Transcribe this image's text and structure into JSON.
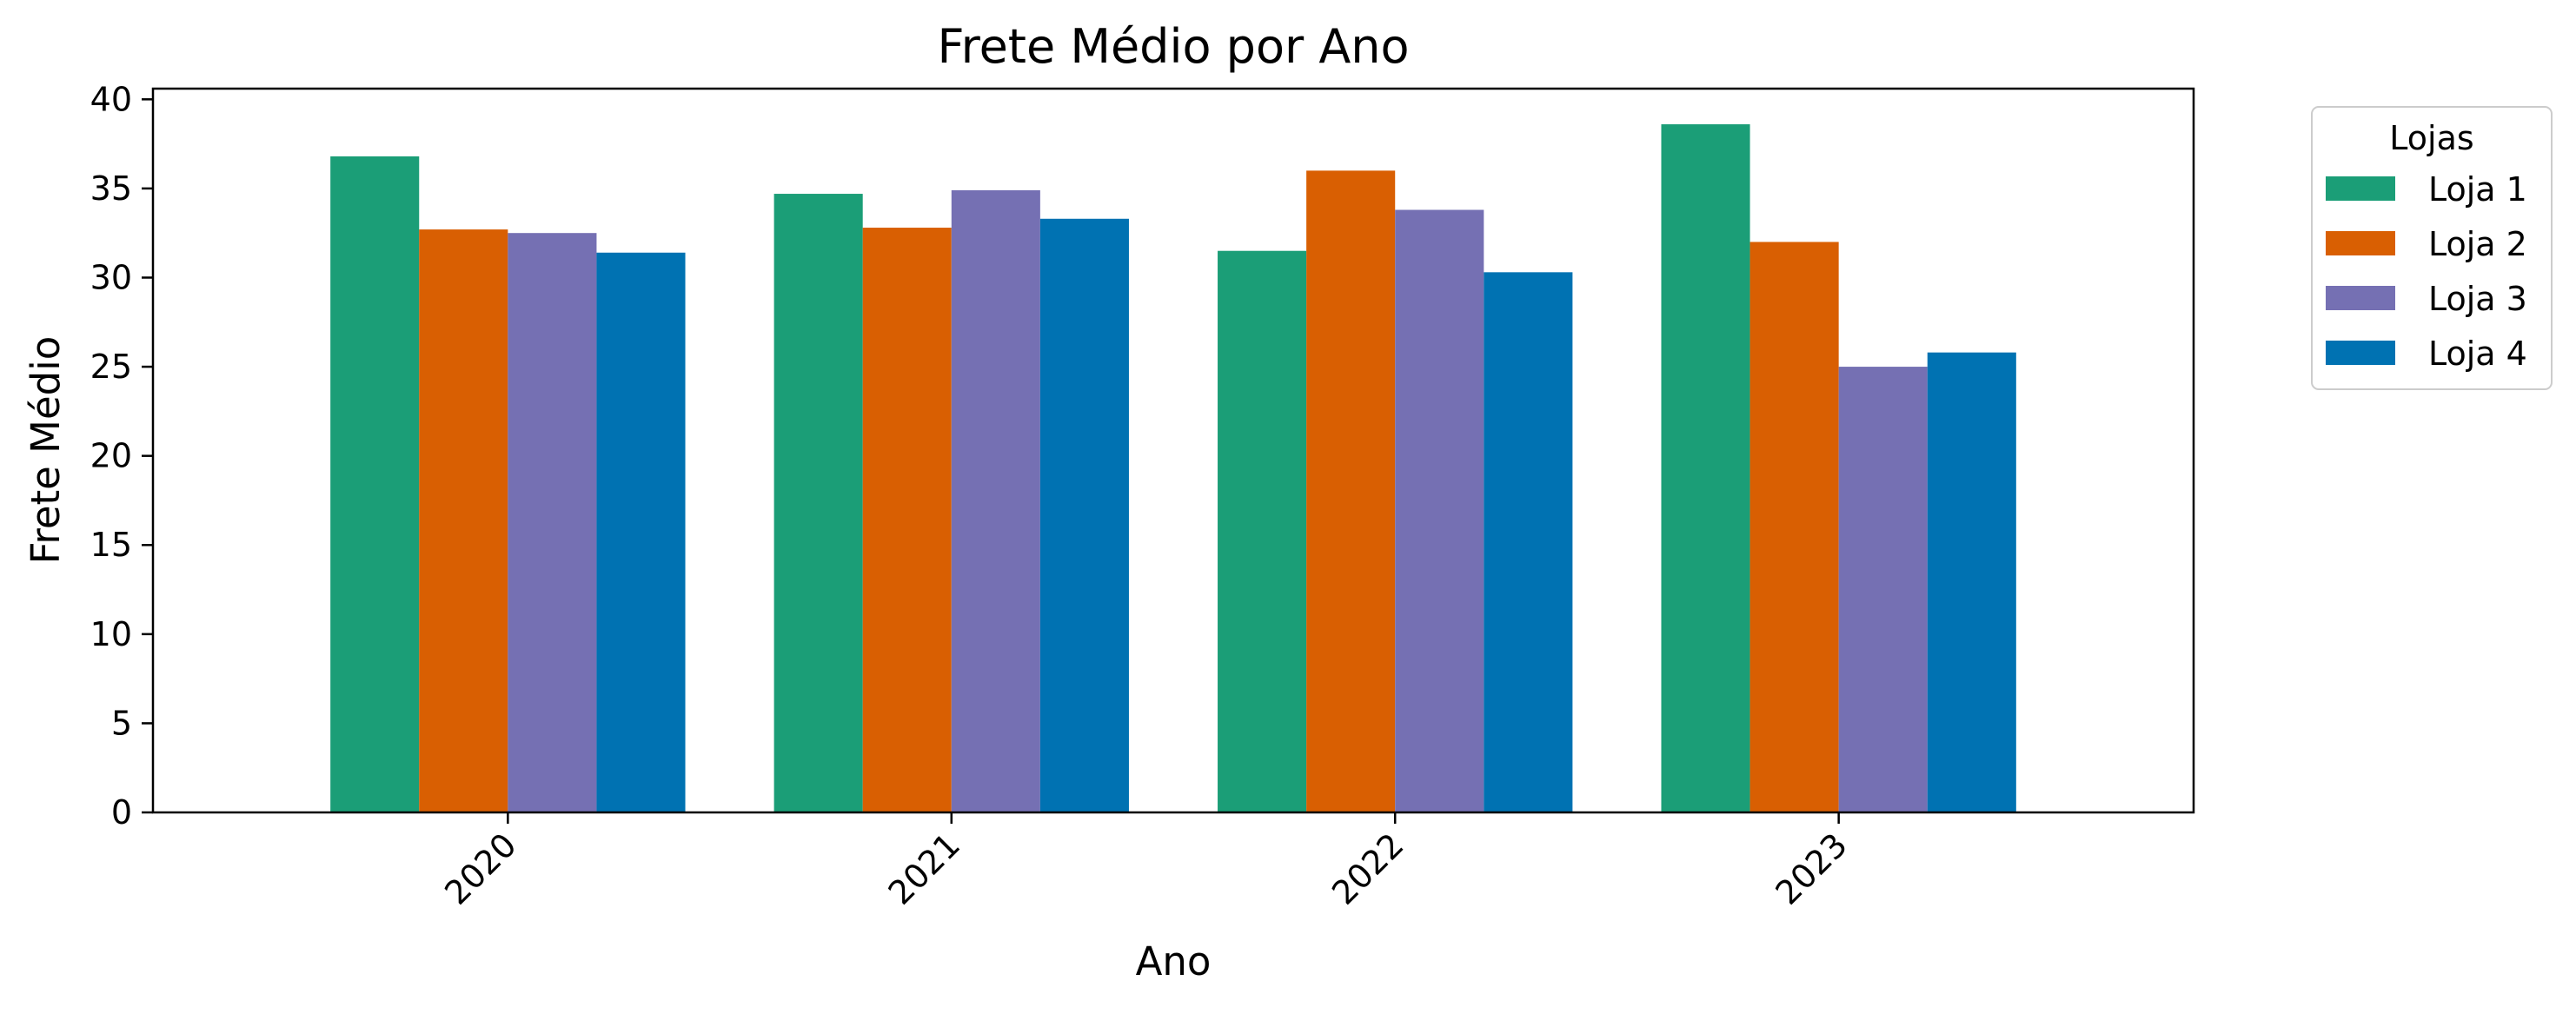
{
  "chart_data": {
    "type": "bar",
    "title": "Frete Médio por Ano",
    "xlabel": "Ano",
    "ylabel": "Frete Médio",
    "categories": [
      "2020",
      "2021",
      "2022",
      "2023"
    ],
    "ylim": [
      0,
      40.6
    ],
    "yticks": [
      0,
      5,
      10,
      15,
      20,
      25,
      30,
      35,
      40
    ],
    "xtick_rotation": 45,
    "grid": false,
    "legend": {
      "title": "Lojas",
      "placement": "outside-upper-right"
    },
    "series": [
      {
        "name": "Loja 1",
        "color": "#1b9e77",
        "values": [
          36.8,
          34.7,
          31.5,
          38.6
        ]
      },
      {
        "name": "Loja 2",
        "color": "#d95f02",
        "values": [
          32.7,
          32.8,
          36.0,
          32.0
        ]
      },
      {
        "name": "Loja 3",
        "color": "#7570b3",
        "values": [
          32.5,
          34.9,
          33.8,
          25.0
        ]
      },
      {
        "name": "Loja 4",
        "color": "#0072b2",
        "values": [
          31.4,
          33.3,
          30.3,
          25.8
        ]
      }
    ]
  }
}
